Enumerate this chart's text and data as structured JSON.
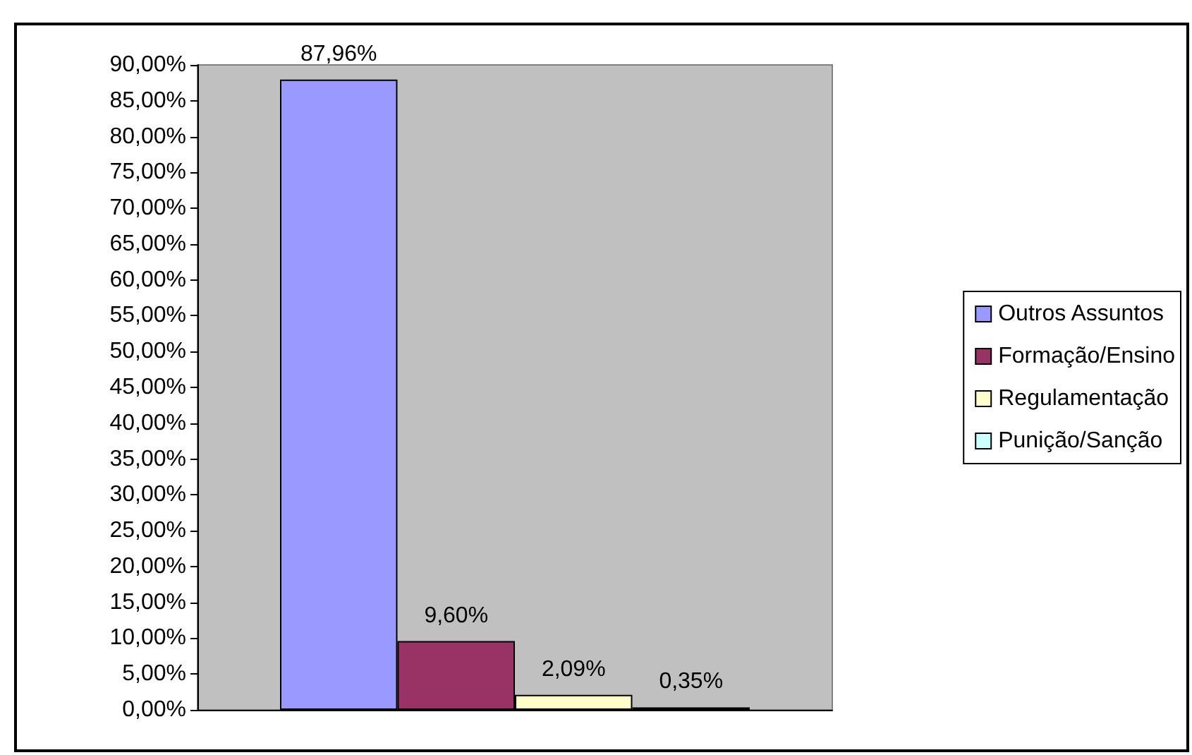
{
  "chart_data": {
    "type": "bar",
    "categories": [
      null
    ],
    "series": [
      {
        "name": "Outros Assuntos",
        "color": "#9999ff",
        "values": [
          87.96
        ],
        "value_labels": [
          "87,96%"
        ]
      },
      {
        "name": "Formação/Ensino",
        "color": "#993366",
        "values": [
          9.6
        ],
        "value_labels": [
          "9,60%"
        ]
      },
      {
        "name": "Regulamentação",
        "color": "#ffffcc",
        "values": [
          2.09
        ],
        "value_labels": [
          "2,09%"
        ]
      },
      {
        "name": "Punição/Sanção",
        "color": "#ccffff",
        "values": [
          0.35
        ],
        "value_labels": [
          "0,35%"
        ]
      }
    ],
    "ylim": [
      0,
      90
    ],
    "yticks": [
      {
        "value": 0,
        "label": "0,00%"
      },
      {
        "value": 5,
        "label": "5,00%"
      },
      {
        "value": 10,
        "label": "10,00%"
      },
      {
        "value": 15,
        "label": "15,00%"
      },
      {
        "value": 20,
        "label": "20,00%"
      },
      {
        "value": 25,
        "label": "25,00%"
      },
      {
        "value": 30,
        "label": "30,00%"
      },
      {
        "value": 35,
        "label": "35,00%"
      },
      {
        "value": 40,
        "label": "40,00%"
      },
      {
        "value": 45,
        "label": "45,00%"
      },
      {
        "value": 50,
        "label": "50,00%"
      },
      {
        "value": 55,
        "label": "55,00%"
      },
      {
        "value": 60,
        "label": "60,00%"
      },
      {
        "value": 65,
        "label": "65,00%"
      },
      {
        "value": 70,
        "label": "70,00%"
      },
      {
        "value": 75,
        "label": "75,00%"
      },
      {
        "value": 80,
        "label": "80,00%"
      },
      {
        "value": 85,
        "label": "85,00%"
      },
      {
        "value": 90,
        "label": "90,00%"
      }
    ],
    "grid": false,
    "legend": "right"
  }
}
